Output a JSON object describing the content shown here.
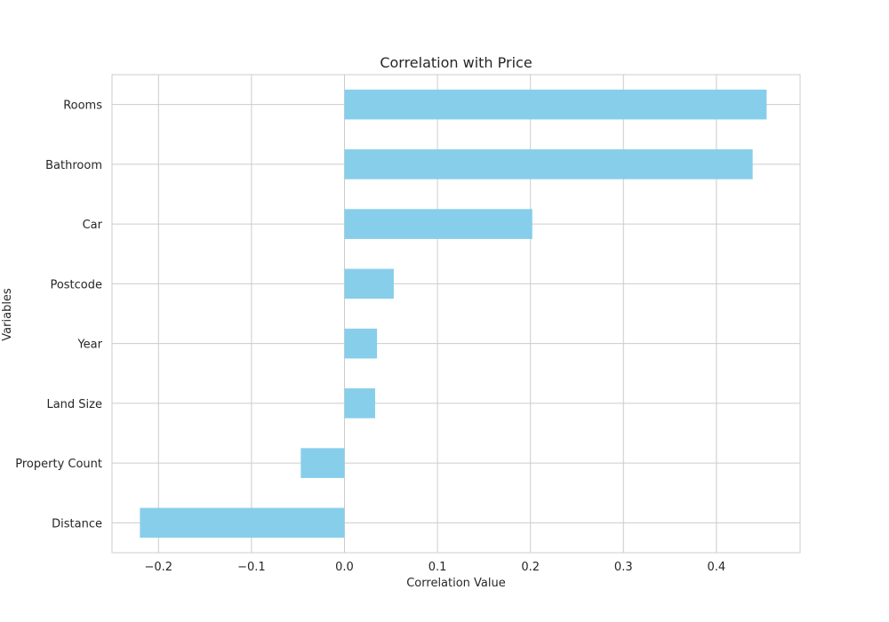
{
  "chart_data": {
    "type": "bar",
    "orientation": "horizontal",
    "title": "Correlation with Price",
    "xlabel": "Correlation Value",
    "ylabel": "Variables",
    "categories": [
      "Rooms",
      "Bathroom",
      "Car",
      "Postcode",
      "Year",
      "Land Size",
      "Property Count",
      "Distance"
    ],
    "values": [
      0.454,
      0.439,
      0.202,
      0.053,
      0.035,
      0.033,
      -0.047,
      -0.22
    ],
    "xlim": [
      -0.25,
      0.49
    ],
    "xticks": [
      -0.2,
      -0.1,
      0.0,
      0.1,
      0.2,
      0.3,
      0.4
    ],
    "xtick_labels": [
      "−0.2",
      "−0.1",
      "0.0",
      "0.1",
      "0.2",
      "0.3",
      "0.4"
    ],
    "bar_color": "#87CEEB",
    "grid": true,
    "legend": false
  }
}
